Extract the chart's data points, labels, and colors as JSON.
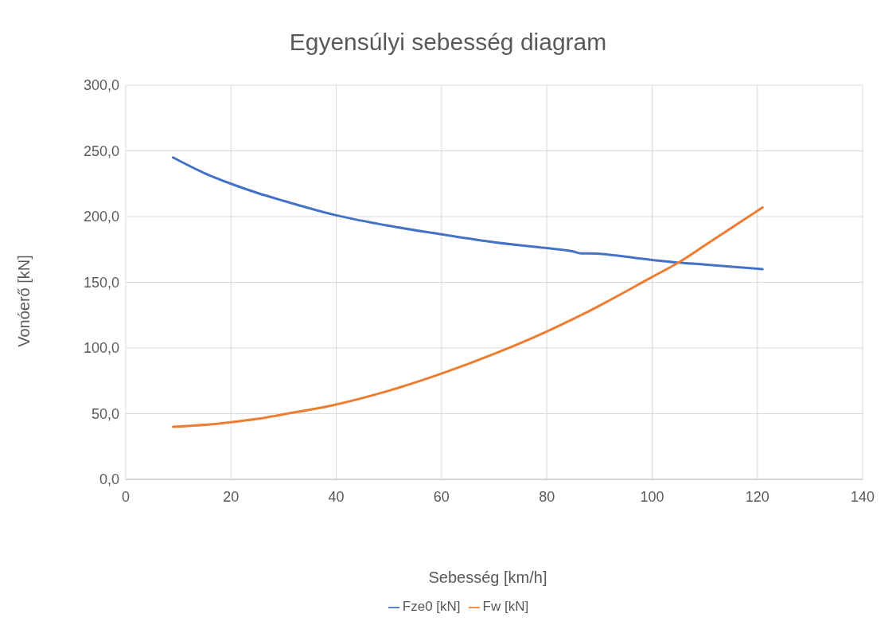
{
  "chart_data": {
    "type": "line",
    "title": "Egyensúlyi sebesség diagram",
    "xlabel": "Sebesség [km/h]",
    "ylabel": "Vonóerő [kN]",
    "x": [
      9,
      15,
      20,
      25,
      30,
      40,
      50,
      60,
      70,
      80,
      85,
      86.5,
      88,
      100,
      105,
      110,
      121
    ],
    "series": [
      {
        "name": "Fze0 [kN]",
        "color": "#4472c4",
        "values": [
          245,
          233,
          225,
          218,
          212,
          201,
          193,
          186.5,
          180.5,
          176,
          173.5,
          172,
          172,
          167,
          165,
          163.5,
          160
        ]
      },
      {
        "name": "Fw [kN]",
        "color": "#ed7d31",
        "values": [
          40,
          41.5,
          43.5,
          46,
          49.5,
          57,
          67.5,
          80.5,
          95.5,
          112.5,
          122,
          125,
          128,
          154,
          165,
          178,
          207
        ]
      }
    ],
    "xlim": [
      0,
      140
    ],
    "xticks": [
      0,
      20,
      40,
      60,
      80,
      100,
      120,
      140
    ],
    "ylim": [
      0,
      300
    ],
    "yticks": [
      {
        "value": 0,
        "label": "0,0"
      },
      {
        "value": 50,
        "label": "50,0"
      },
      {
        "value": 100,
        "label": "100,0"
      },
      {
        "value": 150,
        "label": "150,0"
      },
      {
        "value": 200,
        "label": "200,0"
      },
      {
        "value": 250,
        "label": "250,0"
      },
      {
        "value": 300,
        "label": "300,0"
      }
    ],
    "grid": true,
    "legend": "bottom",
    "marker": "none",
    "line_style": "solid"
  }
}
